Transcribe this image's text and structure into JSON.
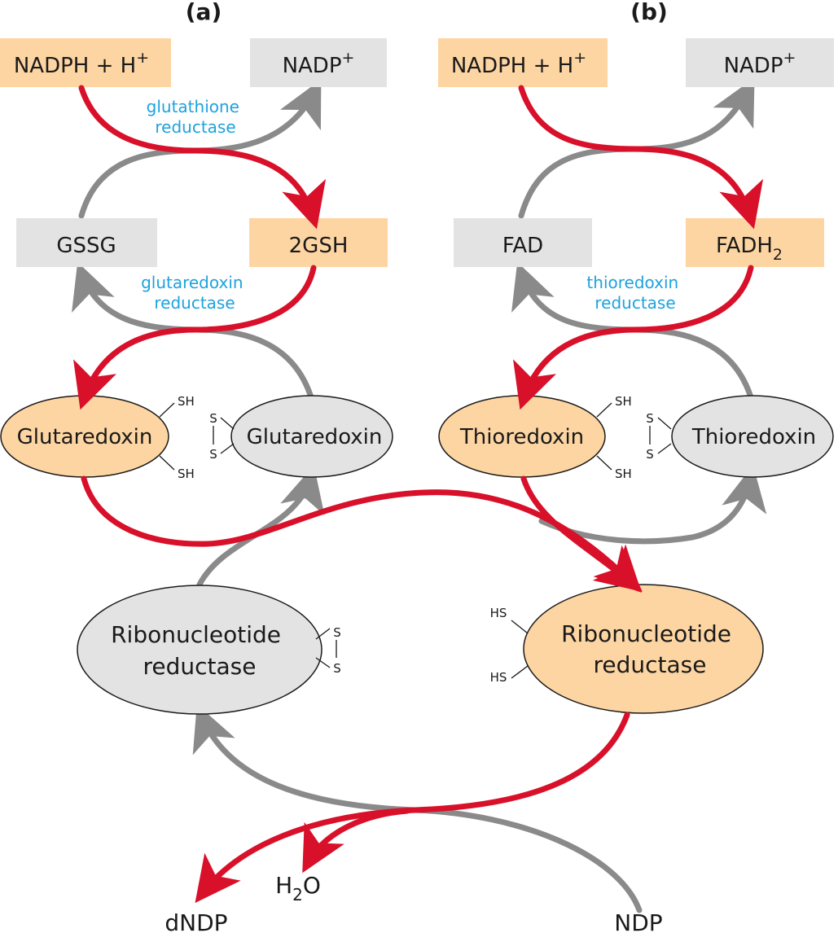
{
  "panels": {
    "a": "(a)",
    "b": "(b)"
  },
  "colors": {
    "reduced_fill": "#fdd5a2",
    "oxidized_fill": "#e3e3e3",
    "reduction_arrow": "#d8102a",
    "oxidation_arrow": "#8a8a8a",
    "enzyme_label": "#1ea2dd"
  },
  "a": {
    "nadph": "NADPH + H",
    "nadph_sup": "+",
    "nadp": "NADP",
    "nadp_sup": "+",
    "enzyme1": {
      "line1": "glutathione",
      "line2": "reductase"
    },
    "gssg": "GSSG",
    "gsh": "2GSH",
    "enzyme2": {
      "line1": "glutaredoxin",
      "line2": "reductase"
    },
    "reduced_protein": "Glutaredoxin",
    "oxidized_protein": "Glutaredoxin",
    "sh_top": "SH",
    "sh_bottom": "SH",
    "s_top": "S",
    "s_bottom": "S"
  },
  "b": {
    "nadph": "NADPH + H",
    "nadph_sup": "+",
    "nadp": "NADP",
    "nadp_sup": "+",
    "fad": "FAD",
    "fadh": "FADH",
    "fadh_sub": "2",
    "enzyme": {
      "line1": "thioredoxin",
      "line2": "reductase"
    },
    "reduced_protein": "Thioredoxin",
    "oxidized_protein": "Thioredoxin",
    "sh_top": "SH",
    "sh_bottom": "SH",
    "s_top": "S",
    "s_bottom": "S"
  },
  "rnr": {
    "oxidized": {
      "line1": "Ribonucleotide",
      "line2": "reductase",
      "s_top": "S",
      "s_bottom": "S"
    },
    "reduced": {
      "line1": "Ribonucleotide",
      "line2": "reductase",
      "hs_top": "HS",
      "hs_bottom": "HS"
    }
  },
  "bottom": {
    "h2o": "H",
    "h2o_sub": "2",
    "h2o_tail": "O",
    "dndp": "dNDP",
    "ndp": "NDP"
  }
}
